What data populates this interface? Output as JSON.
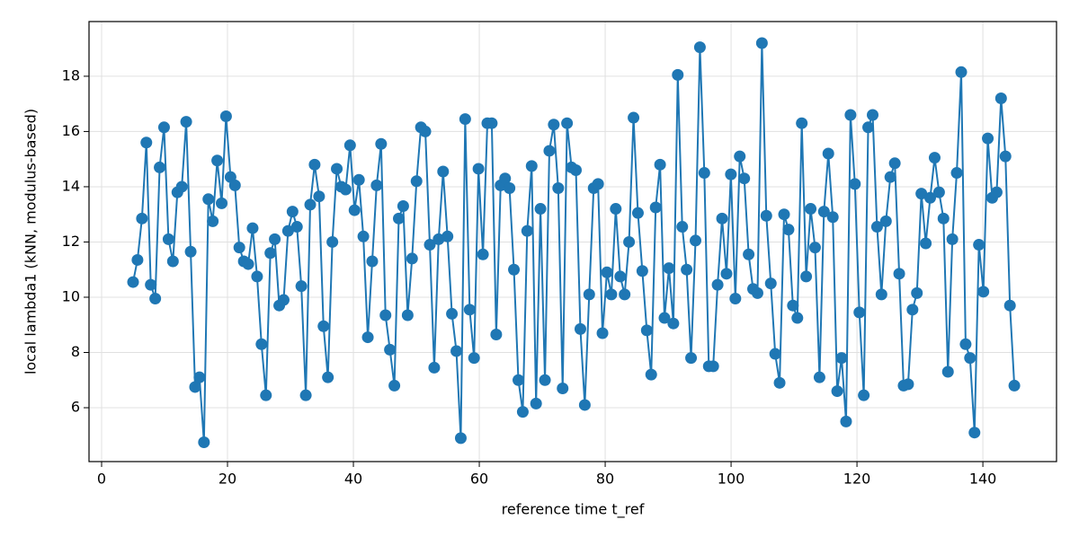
{
  "chart_data": {
    "type": "line",
    "xlabel": "reference time t_ref",
    "ylabel": "local lambda1 (kNN, modulus-based)",
    "color": "#1f77b4",
    "grid": true,
    "xlim": [
      -2,
      151.7
    ],
    "ylim": [
      4.05,
      19.98
    ],
    "xticks": [
      0,
      20,
      40,
      60,
      80,
      100,
      120,
      140
    ],
    "yticks": [
      6,
      8,
      10,
      12,
      14,
      16,
      18
    ],
    "x": [
      5.0,
      5.7,
      6.41,
      7.11,
      7.81,
      8.52,
      9.22,
      9.92,
      10.63,
      11.33,
      12.04,
      12.74,
      13.44,
      14.15,
      14.85,
      15.55,
      16.26,
      16.96,
      17.66,
      18.37,
      19.07,
      19.77,
      20.48,
      21.18,
      21.88,
      22.59,
      23.29,
      23.99,
      24.7,
      25.4,
      26.11,
      26.81,
      27.51,
      28.22,
      28.92,
      29.62,
      30.33,
      31.03,
      31.73,
      32.44,
      33.14,
      33.84,
      34.55,
      35.25,
      35.95,
      36.66,
      37.36,
      38.07,
      38.77,
      39.47,
      40.18,
      40.88,
      41.58,
      42.29,
      42.99,
      43.69,
      44.4,
      45.1,
      45.8,
      46.51,
      47.21,
      47.91,
      48.62,
      49.32,
      50.03,
      50.73,
      51.43,
      52.14,
      52.84,
      53.54,
      54.25,
      54.95,
      55.65,
      56.36,
      57.06,
      57.76,
      58.47,
      59.17,
      59.87,
      60.58,
      61.28,
      61.98,
      62.69,
      63.39,
      64.1,
      64.8,
      65.5,
      66.21,
      66.91,
      67.61,
      68.32,
      69.02,
      69.72,
      70.43,
      71.13,
      71.83,
      72.54,
      73.24,
      73.94,
      74.65,
      75.35,
      76.06,
      76.76,
      77.46,
      78.17,
      78.87,
      79.57,
      80.28,
      80.98,
      81.68,
      82.39,
      83.09,
      83.79,
      84.5,
      85.2,
      85.9,
      86.61,
      87.31,
      88.02,
      88.72,
      89.42,
      90.13,
      90.83,
      91.53,
      92.24,
      92.94,
      93.64,
      94.35,
      95.05,
      95.75,
      96.46,
      97.16,
      97.86,
      98.57,
      99.27,
      99.97,
      100.68,
      101.38,
      102.09,
      102.79,
      103.49,
      104.2,
      104.9,
      105.6,
      106.31,
      107.01,
      107.71,
      108.42,
      109.12,
      109.82,
      110.53,
      111.23,
      111.93,
      112.64,
      113.34,
      114.05,
      114.75,
      115.45,
      116.16,
      116.86,
      117.56,
      118.27,
      118.97,
      119.67,
      120.38,
      121.08,
      121.78,
      122.49,
      123.19,
      123.89,
      124.6,
      125.3,
      126.01,
      126.71,
      127.41,
      128.12,
      128.82,
      129.52,
      130.23,
      130.93,
      131.63,
      132.34,
      133.04,
      133.74,
      134.45,
      135.15,
      135.85,
      136.56,
      137.26,
      137.96,
      138.67,
      139.37,
      140.08,
      140.78,
      141.48,
      142.19,
      142.89,
      143.59,
      144.3,
      145.0
    ],
    "values": [
      10.55,
      11.35,
      12.85,
      15.6,
      10.45,
      9.95,
      14.7,
      16.15,
      12.1,
      11.3,
      13.8,
      14.0,
      16.35,
      11.65,
      6.75,
      7.1,
      4.75,
      13.55,
      12.75,
      14.95,
      13.4,
      16.55,
      14.35,
      14.05,
      11.8,
      11.3,
      11.2,
      12.5,
      10.75,
      8.3,
      6.45,
      11.6,
      12.1,
      9.7,
      9.9,
      12.4,
      13.1,
      12.55,
      10.4,
      6.45,
      13.35,
      14.8,
      13.65,
      8.95,
      7.1,
      12.0,
      14.65,
      14.0,
      13.9,
      15.5,
      13.15,
      14.25,
      12.2,
      8.55,
      11.3,
      14.05,
      15.55,
      9.35,
      8.1,
      6.8,
      12.85,
      13.3,
      9.35,
      11.4,
      14.2,
      16.15,
      16.0,
      11.9,
      7.45,
      12.1,
      14.55,
      12.2,
      9.4,
      8.05,
      4.9,
      16.45,
      9.55,
      7.8,
      14.65,
      11.55,
      16.3,
      16.3,
      8.65,
      14.05,
      14.3,
      13.95,
      11.0,
      7.0,
      5.85,
      12.4,
      14.75,
      6.15,
      13.2,
      7.0,
      15.3,
      16.25,
      13.95,
      6.7,
      16.3,
      14.7,
      14.6,
      8.85,
      6.1,
      10.1,
      13.95,
      14.1,
      8.7,
      10.9,
      10.1,
      13.2,
      10.75,
      10.1,
      12.0,
      16.5,
      13.05,
      10.95,
      8.8,
      7.2,
      13.25,
      14.8,
      9.25,
      11.05,
      9.05,
      18.05,
      12.55,
      11.0,
      7.8,
      12.05,
      19.05,
      14.5,
      7.5,
      7.5,
      10.45,
      12.85,
      10.85,
      14.45,
      9.95,
      15.1,
      14.3,
      11.55,
      10.3,
      10.15,
      19.2,
      12.95,
      10.5,
      7.95,
      6.9,
      13.0,
      12.45,
      9.7,
      9.25,
      16.3,
      10.75,
      13.2,
      11.8,
      7.1,
      13.1,
      15.2,
      12.9,
      6.6,
      7.8,
      5.5,
      16.6,
      14.1,
      9.45,
      6.45,
      16.15,
      16.6,
      12.55,
      10.1,
      12.75,
      14.35,
      14.85,
      10.85,
      6.8,
      6.85,
      9.55,
      10.15,
      13.75,
      11.95,
      13.6,
      15.05,
      13.8,
      12.85,
      7.3,
      12.1,
      14.5,
      18.15,
      8.3,
      7.8,
      5.1,
      11.9,
      10.2,
      15.75,
      13.6,
      13.8,
      17.2,
      15.1,
      9.7,
      6.8
    ]
  }
}
